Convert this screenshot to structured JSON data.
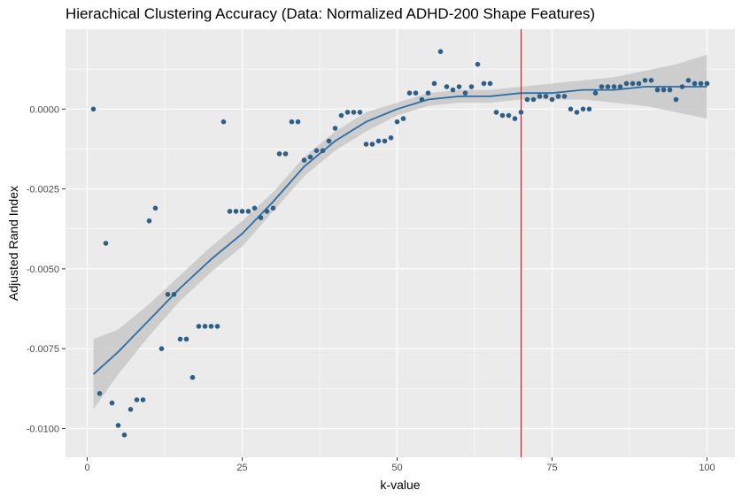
{
  "chart_data": {
    "type": "scatter",
    "title": "Hierachical Clustering Accuracy (Data: Normalized ADHD-200 Shape Features)",
    "xlabel": "k-value",
    "ylabel": "Adjusted Rand Index",
    "xlim": [
      -3.5,
      104.5
    ],
    "ylim": [
      -0.0109,
      0.0025
    ],
    "xticks": [
      0,
      25,
      50,
      75,
      100
    ],
    "xtick_labels": [
      "0",
      "25",
      "50",
      "75",
      "100"
    ],
    "yticks": [
      -0.01,
      -0.0075,
      -0.005,
      -0.0025,
      0.0
    ],
    "ytick_labels": [
      "-0.0100",
      "-0.0075",
      "-0.0050",
      "-0.0025",
      "0.0000"
    ],
    "grid": true,
    "vline": {
      "x": 70,
      "color": "#ff0000"
    },
    "colors": {
      "points": "#2f5f86",
      "smooth_line": "#2e6da4",
      "ribbon": "#c8c8c8",
      "panel": "#ebebeb"
    },
    "points": [
      [
        1,
        0.0
      ],
      [
        2,
        -0.0089
      ],
      [
        3,
        -0.0042
      ],
      [
        4,
        -0.0092
      ],
      [
        5,
        -0.0099
      ],
      [
        6,
        -0.0102
      ],
      [
        7,
        -0.0094
      ],
      [
        8,
        -0.0091
      ],
      [
        9,
        -0.0091
      ],
      [
        10,
        -0.0035
      ],
      [
        11,
        -0.0031
      ],
      [
        12,
        -0.0075
      ],
      [
        13,
        -0.0058
      ],
      [
        14,
        -0.0058
      ],
      [
        15,
        -0.0072
      ],
      [
        16,
        -0.0072
      ],
      [
        17,
        -0.0084
      ],
      [
        18,
        -0.0068
      ],
      [
        19,
        -0.0068
      ],
      [
        20,
        -0.0068
      ],
      [
        21,
        -0.0068
      ],
      [
        22,
        -0.0004
      ],
      [
        23,
        -0.0032
      ],
      [
        24,
        -0.0032
      ],
      [
        25,
        -0.0032
      ],
      [
        26,
        -0.0032
      ],
      [
        27,
        -0.0031
      ],
      [
        28,
        -0.0034
      ],
      [
        29,
        -0.0032
      ],
      [
        30,
        -0.0031
      ],
      [
        31,
        -0.0014
      ],
      [
        32,
        -0.0014
      ],
      [
        33,
        -0.0004
      ],
      [
        34,
        -0.0004
      ],
      [
        35,
        -0.0016
      ],
      [
        36,
        -0.0015
      ],
      [
        37,
        -0.0013
      ],
      [
        38,
        -0.0013
      ],
      [
        39,
        -0.001
      ],
      [
        40,
        -0.0006
      ],
      [
        41,
        -0.0002
      ],
      [
        42,
        -0.0001
      ],
      [
        43,
        -0.0001
      ],
      [
        44,
        -0.0001
      ],
      [
        45,
        -0.0011
      ],
      [
        46,
        -0.0011
      ],
      [
        47,
        -0.001
      ],
      [
        48,
        -0.001
      ],
      [
        49,
        -0.0009
      ],
      [
        50,
        -0.0004
      ],
      [
        51,
        -0.0003
      ],
      [
        52,
        0.0005
      ],
      [
        53,
        0.0005
      ],
      [
        54,
        0.0003
      ],
      [
        55,
        0.0005
      ],
      [
        56,
        0.0008
      ],
      [
        57,
        0.0018
      ],
      [
        58,
        0.0007
      ],
      [
        59,
        0.0006
      ],
      [
        60,
        0.0007
      ],
      [
        61,
        0.0005
      ],
      [
        62,
        0.0007
      ],
      [
        63,
        0.0014
      ],
      [
        64,
        0.0008
      ],
      [
        65,
        0.0008
      ],
      [
        66,
        -0.0001
      ],
      [
        67,
        -0.0002
      ],
      [
        68,
        -0.0002
      ],
      [
        69,
        -0.0003
      ],
      [
        70,
        -0.0001
      ],
      [
        71,
        0.0003
      ],
      [
        72,
        0.0003
      ],
      [
        73,
        0.0004
      ],
      [
        74,
        0.0004
      ],
      [
        75,
        0.0003
      ],
      [
        76,
        0.0004
      ],
      [
        77,
        0.0004
      ],
      [
        78,
        0.0
      ],
      [
        79,
        -0.0001
      ],
      [
        80,
        0.0
      ],
      [
        81,
        0.0
      ],
      [
        82,
        0.0005
      ],
      [
        83,
        0.0007
      ],
      [
        84,
        0.0007
      ],
      [
        85,
        0.0007
      ],
      [
        86,
        0.0007
      ],
      [
        87,
        0.0008
      ],
      [
        88,
        0.0008
      ],
      [
        89,
        0.0008
      ],
      [
        90,
        0.0009
      ],
      [
        91,
        0.0009
      ],
      [
        92,
        0.0006
      ],
      [
        93,
        0.0006
      ],
      [
        94,
        0.0006
      ],
      [
        95,
        0.0003
      ],
      [
        96,
        0.0007
      ],
      [
        97,
        0.0009
      ],
      [
        98,
        0.0008
      ],
      [
        99,
        0.0008
      ],
      [
        100,
        0.0008
      ]
    ],
    "smooth": {
      "x": [
        1,
        5,
        10,
        15,
        20,
        25,
        30,
        35,
        40,
        45,
        50,
        55,
        60,
        65,
        70,
        75,
        80,
        85,
        90,
        95,
        100
      ],
      "y": [
        -0.0083,
        -0.0076,
        -0.0066,
        -0.0056,
        -0.0047,
        -0.0039,
        -0.0029,
        -0.0018,
        -0.001,
        -0.0004,
        0.0,
        0.0003,
        0.0004,
        0.0004,
        0.0005,
        0.0005,
        0.0006,
        0.0006,
        0.0007,
        0.0007,
        0.0007
      ],
      "lower": [
        -0.0094,
        -0.0083,
        -0.0071,
        -0.006,
        -0.0051,
        -0.0043,
        -0.0032,
        -0.0021,
        -0.0013,
        -0.0007,
        -0.0002,
        0.0001,
        0.0002,
        0.0002,
        0.0003,
        0.0003,
        0.0003,
        0.0002,
        0.0001,
        -0.0001,
        -0.0003
      ],
      "upper": [
        -0.0072,
        -0.0069,
        -0.0061,
        -0.0052,
        -0.0043,
        -0.0035,
        -0.0026,
        -0.0015,
        -0.0007,
        -0.0001,
        0.0002,
        0.0005,
        0.0006,
        0.0006,
        0.0007,
        0.0008,
        0.0009,
        0.001,
        0.0012,
        0.0014,
        0.0017
      ]
    }
  }
}
